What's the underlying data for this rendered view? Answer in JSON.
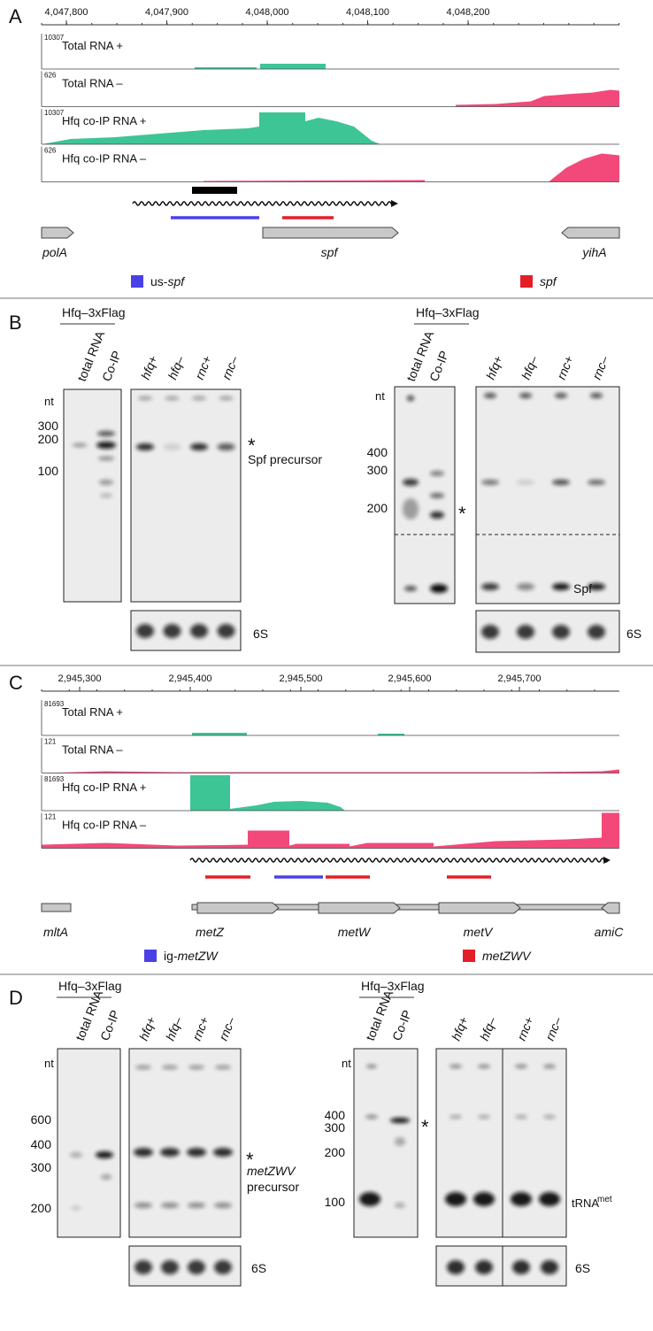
{
  "panelA": {
    "label": "A",
    "coordinates": [
      "4,047,800",
      "4,047,900",
      "4,048,000",
      "4,048,100",
      "4,048,200"
    ],
    "tracks": [
      {
        "scale": "10307",
        "label": "Total RNA +"
      },
      {
        "scale": "626",
        "label": "Total RNA –"
      },
      {
        "scale": "10307",
        "label": "Hfq co-IP RNA +"
      },
      {
        "scale": "626",
        "label": "Hfq co-IP RNA –"
      }
    ],
    "genes": [
      "polA",
      "spf",
      "yihA"
    ],
    "legend": [
      {
        "prefix": "us-",
        "gene": "spf"
      },
      {
        "gene": "spf"
      }
    ]
  },
  "panelB": {
    "label": "B",
    "left": {
      "construct": "Hfq–3xFlag",
      "lanes": [
        "total RNA",
        "Co-IP"
      ],
      "nt_label": "nt",
      "sizes": [
        "300",
        "200",
        "100"
      ],
      "mutant_lanes": [
        "hfq+",
        "hfq–",
        "rnc+",
        "rnc–"
      ],
      "star": "*",
      "band_label": "Spf precursor",
      "loading": "6S"
    },
    "right": {
      "construct": "Hfq–3xFlag",
      "lanes": [
        "total RNA",
        "Co-IP"
      ],
      "nt_label": "nt",
      "sizes": [
        "400",
        "300",
        "200"
      ],
      "mutant_lanes": [
        "hfq+",
        "hfq–",
        "rnc+",
        "rnc–"
      ],
      "star": "*",
      "band_label": "Spf",
      "loading": "6S"
    }
  },
  "panelC": {
    "label": "C",
    "coordinates": [
      "2,945,300",
      "2,945,400",
      "2,945,500",
      "2,945,600",
      "2,945,700"
    ],
    "tracks": [
      {
        "scale": "81693",
        "label": "Total RNA +"
      },
      {
        "scale": "121",
        "label": "Total RNA –"
      },
      {
        "scale": "81693",
        "label": "Hfq co-IP RNA +"
      },
      {
        "scale": "121",
        "label": "Hfq co-IP RNA –"
      }
    ],
    "genes": [
      "mltA",
      "metZ",
      "metW",
      "metV",
      "amiC"
    ],
    "legend": [
      {
        "prefix": "ig-",
        "gene": "metZW"
      },
      {
        "gene": "metZWV"
      }
    ]
  },
  "panelD": {
    "label": "D",
    "left": {
      "construct": "Hfq–3xFlag",
      "lanes": [
        "total RNA",
        "Co-IP"
      ],
      "nt_label": "nt",
      "sizes": [
        "600",
        "400",
        "300",
        "200"
      ],
      "mutant_lanes": [
        "hfq+",
        "hfq–",
        "rnc+",
        "rnc–"
      ],
      "star": "*",
      "band_label": "metZWV",
      "band_label2": "precursor",
      "loading": "6S"
    },
    "right": {
      "construct": "Hfq–3xFlag",
      "lanes": [
        "total RNA",
        "Co-IP"
      ],
      "nt_label": "nt",
      "sizes": [
        "400",
        "300",
        "200",
        "100"
      ],
      "mutant_lanes": [
        "hfq+",
        "hfq–",
        "rnc+",
        "rnc–"
      ],
      "star": "*",
      "band_label": "tRNA",
      "band_sup": "met",
      "loading": "6S"
    }
  }
}
